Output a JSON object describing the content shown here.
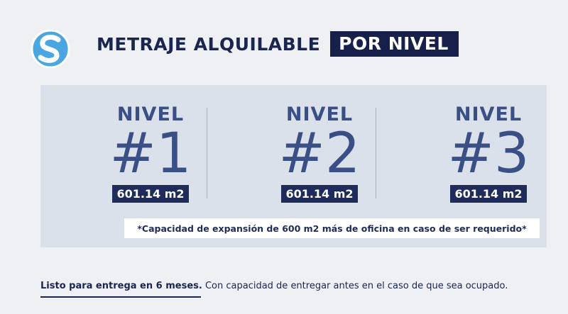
{
  "header": {
    "title_main": "METRAJE ALQUILABLE",
    "title_highlight": "POR NIVEL"
  },
  "levels": [
    {
      "label": "NIVEL",
      "number": "#1",
      "area": "601.14 m2"
    },
    {
      "label": "NIVEL",
      "number": "#2",
      "area": "601.14 m2"
    },
    {
      "label": "NIVEL",
      "number": "#3",
      "area": "601.14 m2"
    }
  ],
  "note": "*Capacidad de expansión de 600 m2 más de oficina en caso de ser requerido*",
  "footer": {
    "bold": "Listo para entrega en 6 meses.",
    "text": " Con capacidad de entregar antes en el caso de que sea ocupado."
  },
  "logo": {
    "icon": "s-logo-icon",
    "letter": "S"
  },
  "colors": {
    "navy": "#16204a",
    "steel_blue": "#3a4f86",
    "panel": "#dbe1ea",
    "logo_blue": "#49a6e0"
  }
}
